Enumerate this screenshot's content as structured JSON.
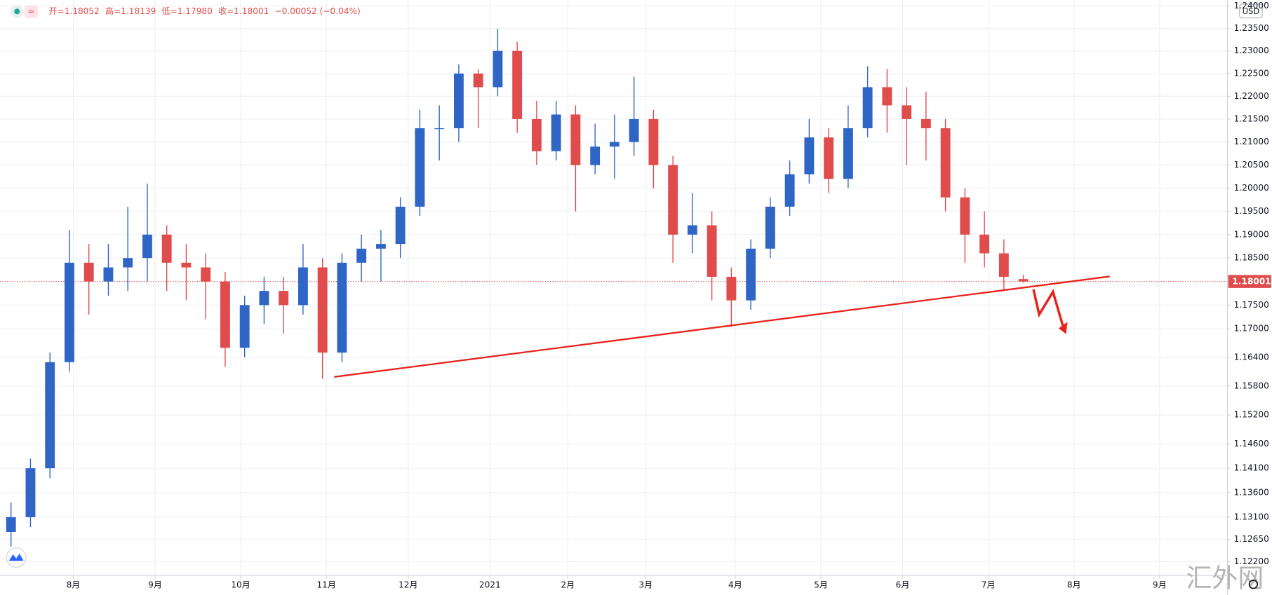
{
  "header": {
    "items": [
      "开=1.18052",
      "高=1.18139",
      "低=1.17980",
      "收=1.18001",
      "−0.00052 (−0.04%)"
    ]
  },
  "watermark": "汇外网",
  "chart_data": {
    "type": "candlestick",
    "currency": "USD",
    "last_price_label": "1.18001",
    "up_color": "#2f66c6",
    "down_color": "#e04b4b",
    "grid": true,
    "log_scale": true,
    "x": [
      2,
      7,
      12,
      17,
      22,
      27,
      32,
      37,
      42,
      47,
      52,
      57,
      62,
      67,
      72,
      77,
      82,
      87,
      92,
      97,
      102,
      107,
      112,
      117,
      122,
      127,
      132,
      137,
      142,
      147,
      152,
      157,
      162,
      167,
      172,
      177,
      182,
      187,
      192,
      197,
      202,
      207,
      212,
      217,
      222,
      227,
      232,
      237,
      242,
      247,
      252,
      257,
      262
    ],
    "open": [
      1.128,
      1.131,
      1.141,
      1.163,
      1.184,
      1.18,
      1.183,
      1.185,
      1.19,
      1.184,
      1.183,
      1.18,
      1.166,
      1.175,
      1.178,
      1.175,
      1.183,
      1.165,
      1.184,
      1.187,
      1.188,
      1.196,
      1.213,
      1.213,
      1.225,
      1.222,
      1.23,
      1.215,
      1.208,
      1.216,
      1.205,
      1.209,
      1.21,
      1.215,
      1.205,
      1.19,
      1.192,
      1.181,
      1.176,
      1.187,
      1.196,
      1.203,
      1.211,
      1.202,
      1.213,
      1.222,
      1.218,
      1.215,
      1.213,
      1.198,
      1.19,
      1.186,
      1.18052
    ],
    "high": [
      1.134,
      1.143,
      1.165,
      1.191,
      1.188,
      1.188,
      1.196,
      1.201,
      1.192,
      1.188,
      1.186,
      1.182,
      1.177,
      1.181,
      1.181,
      1.188,
      1.185,
      1.186,
      1.19,
      1.191,
      1.198,
      1.217,
      1.218,
      1.227,
      1.226,
      1.2349,
      1.232,
      1.219,
      1.219,
      1.218,
      1.214,
      1.216,
      1.2243,
      1.217,
      1.207,
      1.199,
      1.195,
      1.183,
      1.189,
      1.198,
      1.206,
      1.215,
      1.213,
      1.218,
      1.2266,
      1.226,
      1.222,
      1.221,
      1.215,
      1.2,
      1.195,
      1.189,
      1.18139
    ],
    "low": [
      1.125,
      1.129,
      1.139,
      1.161,
      1.173,
      1.177,
      1.178,
      1.18,
      1.178,
      1.176,
      1.172,
      1.162,
      1.164,
      1.171,
      1.169,
      1.173,
      1.1595,
      1.163,
      1.18,
      1.18,
      1.185,
      1.194,
      1.206,
      1.21,
      1.213,
      1.22,
      1.212,
      1.205,
      1.206,
      1.195,
      1.203,
      1.202,
      1.207,
      1.2,
      1.184,
      1.186,
      1.176,
      1.1704,
      1.174,
      1.185,
      1.194,
      1.201,
      1.199,
      1.2,
      1.211,
      1.212,
      1.205,
      1.206,
      1.195,
      1.184,
      1.183,
      1.178,
      1.1798
    ],
    "close": [
      1.131,
      1.141,
      1.163,
      1.184,
      1.18,
      1.183,
      1.185,
      1.19,
      1.184,
      1.183,
      1.18,
      1.166,
      1.175,
      1.178,
      1.175,
      1.183,
      1.165,
      1.184,
      1.187,
      1.188,
      1.196,
      1.213,
      1.213,
      1.225,
      1.222,
      1.23,
      1.215,
      1.208,
      1.216,
      1.205,
      1.209,
      1.21,
      1.215,
      1.205,
      1.19,
      1.192,
      1.181,
      1.176,
      1.187,
      1.196,
      1.203,
      1.211,
      1.202,
      1.213,
      1.222,
      1.218,
      1.215,
      1.213,
      1.198,
      1.19,
      1.186,
      1.181,
      1.18001
    ],
    "xlim": [
      -0.83,
      314.4
    ],
    "ylim": [
      1.1192,
      1.2413
    ],
    "xticks": [
      {
        "value": 18,
        "label": "8月"
      },
      {
        "value": 39,
        "label": "9月"
      },
      {
        "value": 61,
        "label": "10月"
      },
      {
        "value": 83,
        "label": "11月"
      },
      {
        "value": 104,
        "label": "12月"
      },
      {
        "value": 125,
        "label": "2021"
      },
      {
        "value": 145,
        "label": "2月"
      },
      {
        "value": 165,
        "label": "3月"
      },
      {
        "value": 188,
        "label": "4月"
      },
      {
        "value": 210,
        "label": "5月"
      },
      {
        "value": 231,
        "label": "6月"
      },
      {
        "value": 253,
        "label": "7月"
      },
      {
        "value": 275,
        "label": "8月"
      },
      {
        "value": 297,
        "label": "9月"
      }
    ],
    "yticks": [
      {
        "value": 1.24,
        "label": "1.24000"
      },
      {
        "value": 1.235,
        "label": "1.23500"
      },
      {
        "value": 1.23,
        "label": "1.23000"
      },
      {
        "value": 1.225,
        "label": "1.22500"
      },
      {
        "value": 1.22,
        "label": "1.22000"
      },
      {
        "value": 1.215,
        "label": "1.21500"
      },
      {
        "value": 1.21,
        "label": "1.21000"
      },
      {
        "value": 1.205,
        "label": "1.20500"
      },
      {
        "value": 1.2,
        "label": "1.20000"
      },
      {
        "value": 1.195,
        "label": "1.19500"
      },
      {
        "value": 1.19,
        "label": "1.19000"
      },
      {
        "value": 1.185,
        "label": "1.18500"
      },
      {
        "value": 1.175,
        "label": "1.17500"
      },
      {
        "value": 1.17,
        "label": "1.17000"
      },
      {
        "value": 1.164,
        "label": "1.16400"
      },
      {
        "value": 1.158,
        "label": "1.15800"
      },
      {
        "value": 1.152,
        "label": "1.15200"
      },
      {
        "value": 1.146,
        "label": "1.14600"
      },
      {
        "value": 1.141,
        "label": "1.14100"
      },
      {
        "value": 1.136,
        "label": "1.13600"
      },
      {
        "value": 1.131,
        "label": "1.13100"
      },
      {
        "value": 1.1265,
        "label": "1.12650"
      },
      {
        "value": 1.122,
        "label": "1.12200"
      }
    ]
  }
}
